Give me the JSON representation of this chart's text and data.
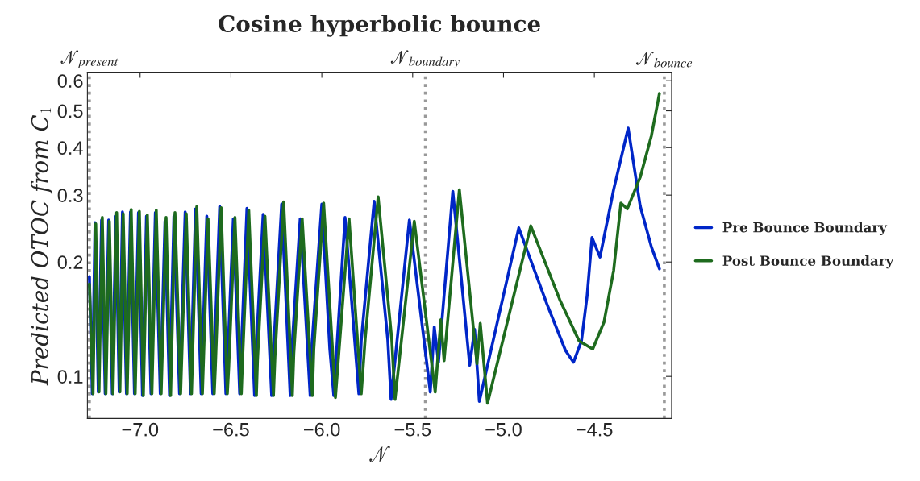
{
  "chart_data": {
    "type": "line",
    "title": "Cosine hyperbolic bounce",
    "xlabel": "𝒩",
    "ylabel": "Predicted OTOC from C$_{1}$",
    "log": "y",
    "xlim": [
      -7.29,
      -4.075
    ],
    "ylim": [
      0.0775,
      0.632
    ],
    "xticks": [
      {
        "value": -7.0,
        "label": "−7.0"
      },
      {
        "value": -6.5,
        "label": "−6.5"
      },
      {
        "value": -6.0,
        "label": "−6.0"
      },
      {
        "value": -5.5,
        "label": "−5.5"
      },
      {
        "value": -5.0,
        "label": "−5.0"
      },
      {
        "value": -4.5,
        "label": "−4.5"
      }
    ],
    "yticks": [
      0.1,
      0.2,
      0.3,
      0.4,
      0.5,
      0.6
    ],
    "grid": false,
    "legend": "right",
    "marker": "none",
    "line_style": "solid",
    "ref_lines": [
      {
        "axis": "x",
        "value": -7.279,
        "label": "𝒩$_{present}$",
        "color": "#999999",
        "line_style": "dotted"
      },
      {
        "axis": "x",
        "value": -5.43,
        "label": "𝒩$_{boundary}$",
        "color": "#999999",
        "line_style": "dotted"
      },
      {
        "axis": "x",
        "value": -4.115,
        "label": "𝒩$_{bounce}$",
        "color": "#999999",
        "line_style": "dotted"
      }
    ],
    "series": [
      {
        "name": "Pre Bounce Boundary",
        "color": "#0026c8",
        "x": [
          -7.279,
          -7.263,
          -7.248,
          -7.23,
          -7.212,
          -7.192,
          -7.173,
          -7.153,
          -7.133,
          -7.115,
          -7.097,
          -7.075,
          -7.053,
          -7.031,
          -7.009,
          -6.987,
          -6.965,
          -6.94,
          -6.916,
          -6.889,
          -6.863,
          -6.838,
          -6.814,
          -6.783,
          -6.752,
          -6.723,
          -6.695,
          -6.664,
          -6.633,
          -6.6,
          -6.594,
          -6.562,
          -6.528,
          -6.52,
          -6.487,
          -6.452,
          -6.446,
          -6.412,
          -6.37,
          -6.364,
          -6.323,
          -6.276,
          -6.268,
          -6.221,
          -6.174,
          -6.166,
          -6.119,
          -6.064,
          -6.056,
          -6.0,
          -5.956,
          -5.934,
          -5.872,
          -5.796,
          -5.783,
          -5.712,
          -5.637,
          -5.619,
          -5.518,
          -5.403,
          -5.381,
          -5.358,
          -5.279,
          -5.186,
          -5.159,
          -5.133,
          -4.916,
          -4.761,
          -4.659,
          -4.615,
          -4.571,
          -4.54,
          -4.513,
          -4.469,
          -4.394,
          -4.314,
          -4.248,
          -4.186,
          -4.142
        ],
        "values": [
          0.183,
          0.09,
          0.254,
          0.091,
          0.258,
          0.09,
          0.258,
          0.09,
          0.264,
          0.091,
          0.271,
          0.09,
          0.271,
          0.09,
          0.27,
          0.089,
          0.264,
          0.09,
          0.27,
          0.09,
          0.256,
          0.089,
          0.264,
          0.09,
          0.271,
          0.09,
          0.276,
          0.09,
          0.264,
          0.09,
          0.105,
          0.28,
          0.09,
          0.106,
          0.26,
          0.09,
          0.108,
          0.277,
          0.089,
          0.11,
          0.267,
          0.089,
          0.112,
          0.284,
          0.089,
          0.115,
          0.26,
          0.089,
          0.118,
          0.284,
          0.118,
          0.089,
          0.262,
          0.09,
          0.124,
          0.289,
          0.125,
          0.087,
          0.258,
          0.091,
          0.135,
          0.109,
          0.307,
          0.107,
          0.133,
          0.086,
          0.246,
          0.155,
          0.117,
          0.109,
          0.124,
          0.163,
          0.232,
          0.206,
          0.31,
          0.45,
          0.281,
          0.219,
          0.192
        ]
      },
      {
        "name": "Post Bounce Boundary",
        "color": "#1e6b1e",
        "x": [
          -7.279,
          -7.259,
          -7.244,
          -7.226,
          -7.208,
          -7.188,
          -7.169,
          -7.149,
          -7.129,
          -7.111,
          -7.093,
          -7.071,
          -7.049,
          -7.027,
          -7.004,
          -6.982,
          -6.96,
          -6.935,
          -6.911,
          -6.884,
          -6.857,
          -6.832,
          -6.808,
          -6.777,
          -6.746,
          -6.717,
          -6.688,
          -6.657,
          -6.626,
          -6.592,
          -6.586,
          -6.554,
          -6.52,
          -6.512,
          -6.478,
          -6.443,
          -6.437,
          -6.402,
          -6.36,
          -6.354,
          -6.313,
          -6.266,
          -6.258,
          -6.21,
          -6.162,
          -6.154,
          -6.108,
          -6.052,
          -6.044,
          -5.99,
          -5.925,
          -5.85,
          -5.783,
          -5.761,
          -5.69,
          -5.615,
          -5.597,
          -5.491,
          -5.376,
          -5.345,
          -5.327,
          -5.243,
          -5.146,
          -5.128,
          -5.088,
          -4.85,
          -4.69,
          -4.584,
          -4.509,
          -4.447,
          -4.394,
          -4.354,
          -4.319,
          -4.248,
          -4.186,
          -4.142
        ],
        "values": [
          0.175,
          0.09,
          0.252,
          0.091,
          0.262,
          0.09,
          0.256,
          0.09,
          0.27,
          0.091,
          0.268,
          0.09,
          0.275,
          0.09,
          0.272,
          0.089,
          0.266,
          0.09,
          0.274,
          0.09,
          0.262,
          0.089,
          0.27,
          0.09,
          0.268,
          0.09,
          0.28,
          0.09,
          0.26,
          0.09,
          0.105,
          0.278,
          0.09,
          0.106,
          0.262,
          0.09,
          0.108,
          0.274,
          0.089,
          0.11,
          0.264,
          0.089,
          0.112,
          0.288,
          0.089,
          0.115,
          0.26,
          0.089,
          0.118,
          0.286,
          0.088,
          0.26,
          0.09,
          0.126,
          0.297,
          0.125,
          0.087,
          0.256,
          0.091,
          0.141,
          0.11,
          0.31,
          0.108,
          0.138,
          0.085,
          0.249,
          0.159,
          0.124,
          0.118,
          0.139,
          0.19,
          0.286,
          0.276,
          0.334,
          0.43,
          0.555
        ]
      }
    ]
  }
}
